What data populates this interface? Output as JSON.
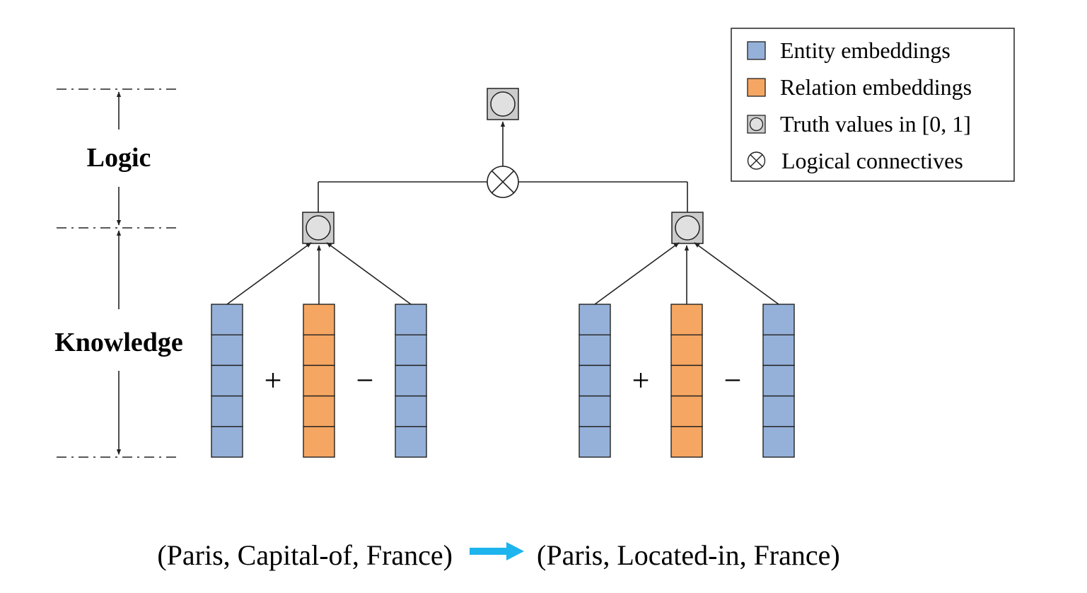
{
  "levels": {
    "logic": "Logic",
    "knowledge": "Knowledge"
  },
  "operators": {
    "plus": "+",
    "minus": "−"
  },
  "legend": {
    "items": [
      {
        "label": "Entity embeddings",
        "icon": "entity-square-icon"
      },
      {
        "label": "Relation embeddings",
        "icon": "relation-square-icon"
      },
      {
        "label": "Truth values in [0, 1]",
        "icon": "truth-value-icon"
      },
      {
        "label": "Logical connectives",
        "icon": "otimes-icon"
      }
    ]
  },
  "caption": {
    "premise": "(Paris, Capital-of, France)",
    "conclusion": "(Paris, Located-in, France)"
  },
  "colors": {
    "entity": "#95B1D9",
    "relation": "#F5A662",
    "truth_box": "#CCCCCC",
    "truth_circle": "#E0E0E0",
    "arrow_cyan": "#1EB4EE",
    "line": "#222222"
  },
  "embedding_cells": 5
}
